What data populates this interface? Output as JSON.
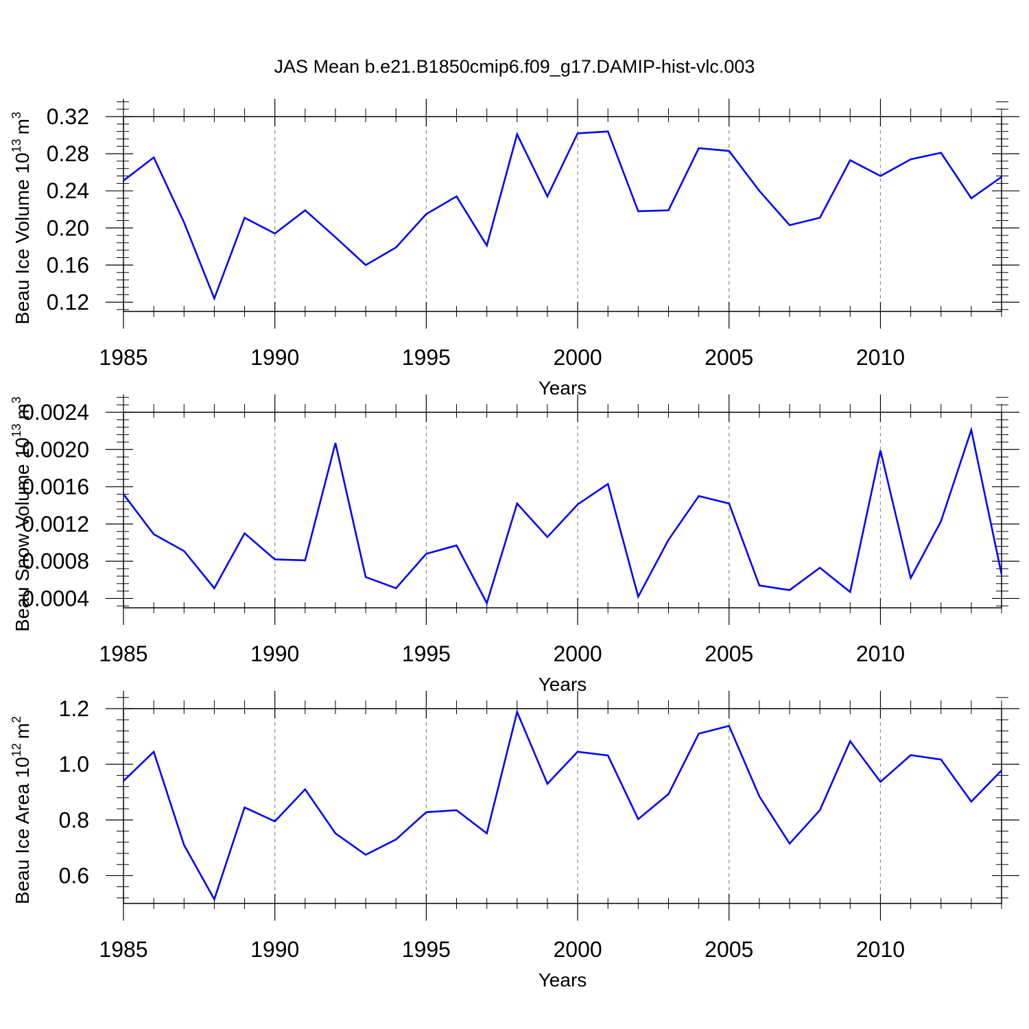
{
  "title": "JAS Mean b.e21.B1850cmip6.f09_g17.DAMIP-hist-vlc.003",
  "line_color": "#0000ff",
  "chart_data": [
    {
      "type": "line",
      "xlabel": "Years",
      "ylabel": "Beau Ice Volume 10",
      "ylabel_exp": "13",
      "ylabel_unit": "m",
      "ylabel_unit_exp": "3",
      "xlim": [
        1985,
        2014
      ],
      "ylim": [
        0.11,
        0.32
      ],
      "xticks": [
        1985,
        1990,
        1995,
        2000,
        2005,
        2010
      ],
      "xtick_labels": [
        "1985",
        "1990",
        "1995",
        "2000",
        "2005",
        "2010"
      ],
      "yticks": [
        0.12,
        0.16,
        0.2,
        0.24,
        0.28,
        0.32
      ],
      "ytick_labels": [
        "0.12",
        "0.16",
        "0.20",
        "0.24",
        "0.28",
        "0.32"
      ],
      "x": [
        1985,
        1986,
        1987,
        1988,
        1989,
        1990,
        1991,
        1992,
        1993,
        1994,
        1995,
        1996,
        1997,
        1998,
        1999,
        2000,
        2001,
        2002,
        2003,
        2004,
        2005,
        2006,
        2007,
        2008,
        2009,
        2010,
        2011,
        2012,
        2013,
        2014
      ],
      "series": [
        {
          "name": "Beau Ice Volume",
          "values": [
            0.251,
            0.276,
            0.206,
            0.124,
            0.211,
            0.194,
            0.219,
            0.19,
            0.16,
            0.179,
            0.215,
            0.234,
            0.181,
            0.301,
            0.234,
            0.302,
            0.304,
            0.218,
            0.219,
            0.286,
            0.283,
            0.24,
            0.203,
            0.211,
            0.273,
            0.256,
            0.274,
            0.281,
            0.232,
            0.255
          ]
        }
      ]
    },
    {
      "type": "line",
      "xlabel": "Years",
      "ylabel": "Beau Snow Volume 10",
      "ylabel_exp": "13",
      "ylabel_unit": "m",
      "ylabel_unit_exp": "3",
      "xlim": [
        1985,
        2014
      ],
      "ylim": [
        0.0003,
        0.0024
      ],
      "xticks": [
        1985,
        1990,
        1995,
        2000,
        2005,
        2010
      ],
      "xtick_labels": [
        "1985",
        "1990",
        "1995",
        "2000",
        "2005",
        "2010"
      ],
      "yticks": [
        0.0004,
        0.0008,
        0.0012,
        0.0016,
        0.002,
        0.0024
      ],
      "ytick_labels": [
        "0.0004",
        "0.0008",
        "0.0012",
        "0.0016",
        "0.0020",
        "0.0024"
      ],
      "x": [
        1985,
        1986,
        1987,
        1988,
        1989,
        1990,
        1991,
        1992,
        1993,
        1994,
        1995,
        1996,
        1997,
        1998,
        1999,
        2000,
        2001,
        2002,
        2003,
        2004,
        2005,
        2006,
        2007,
        2008,
        2009,
        2010,
        2011,
        2012,
        2013,
        2014
      ],
      "series": [
        {
          "name": "Beau Snow Volume",
          "values": [
            0.00152,
            0.00109,
            0.00091,
            0.00051,
            0.0011,
            0.00082,
            0.00081,
            0.00207,
            0.00063,
            0.00051,
            0.00088,
            0.00097,
            0.00035,
            0.00142,
            0.00106,
            0.00141,
            0.00163,
            0.00042,
            0.00103,
            0.0015,
            0.00142,
            0.00054,
            0.00049,
            0.00073,
            0.00047,
            0.00199,
            0.00062,
            0.00123,
            0.00221,
            0.00066
          ]
        }
      ]
    },
    {
      "type": "line",
      "xlabel": "Years",
      "ylabel": "Beau Ice Area 10",
      "ylabel_exp": "12",
      "ylabel_unit": "m",
      "ylabel_unit_exp": "2",
      "xlim": [
        1985,
        2014
      ],
      "ylim": [
        0.5,
        1.2
      ],
      "xticks": [
        1985,
        1990,
        1995,
        2000,
        2005,
        2010
      ],
      "xtick_labels": [
        "1985",
        "1990",
        "1995",
        "2000",
        "2005",
        "2010"
      ],
      "yticks": [
        0.6,
        0.8,
        1.0,
        1.2
      ],
      "ytick_labels": [
        "0.6",
        "0.8",
        "1.0",
        "1.2"
      ],
      "x": [
        1985,
        1986,
        1987,
        1988,
        1989,
        1990,
        1991,
        1992,
        1993,
        1994,
        1995,
        1996,
        1997,
        1998,
        1999,
        2000,
        2001,
        2002,
        2003,
        2004,
        2005,
        2006,
        2007,
        2008,
        2009,
        2010,
        2011,
        2012,
        2013,
        2014
      ],
      "series": [
        {
          "name": "Beau Ice Area",
          "values": [
            0.94,
            1.045,
            0.71,
            0.515,
            0.845,
            0.795,
            0.91,
            0.752,
            0.675,
            0.73,
            0.828,
            0.835,
            0.752,
            1.188,
            0.93,
            1.045,
            1.032,
            0.803,
            0.893,
            1.11,
            1.138,
            0.885,
            0.715,
            0.835,
            1.083,
            0.937,
            1.033,
            1.017,
            0.866,
            0.978
          ]
        }
      ]
    }
  ]
}
